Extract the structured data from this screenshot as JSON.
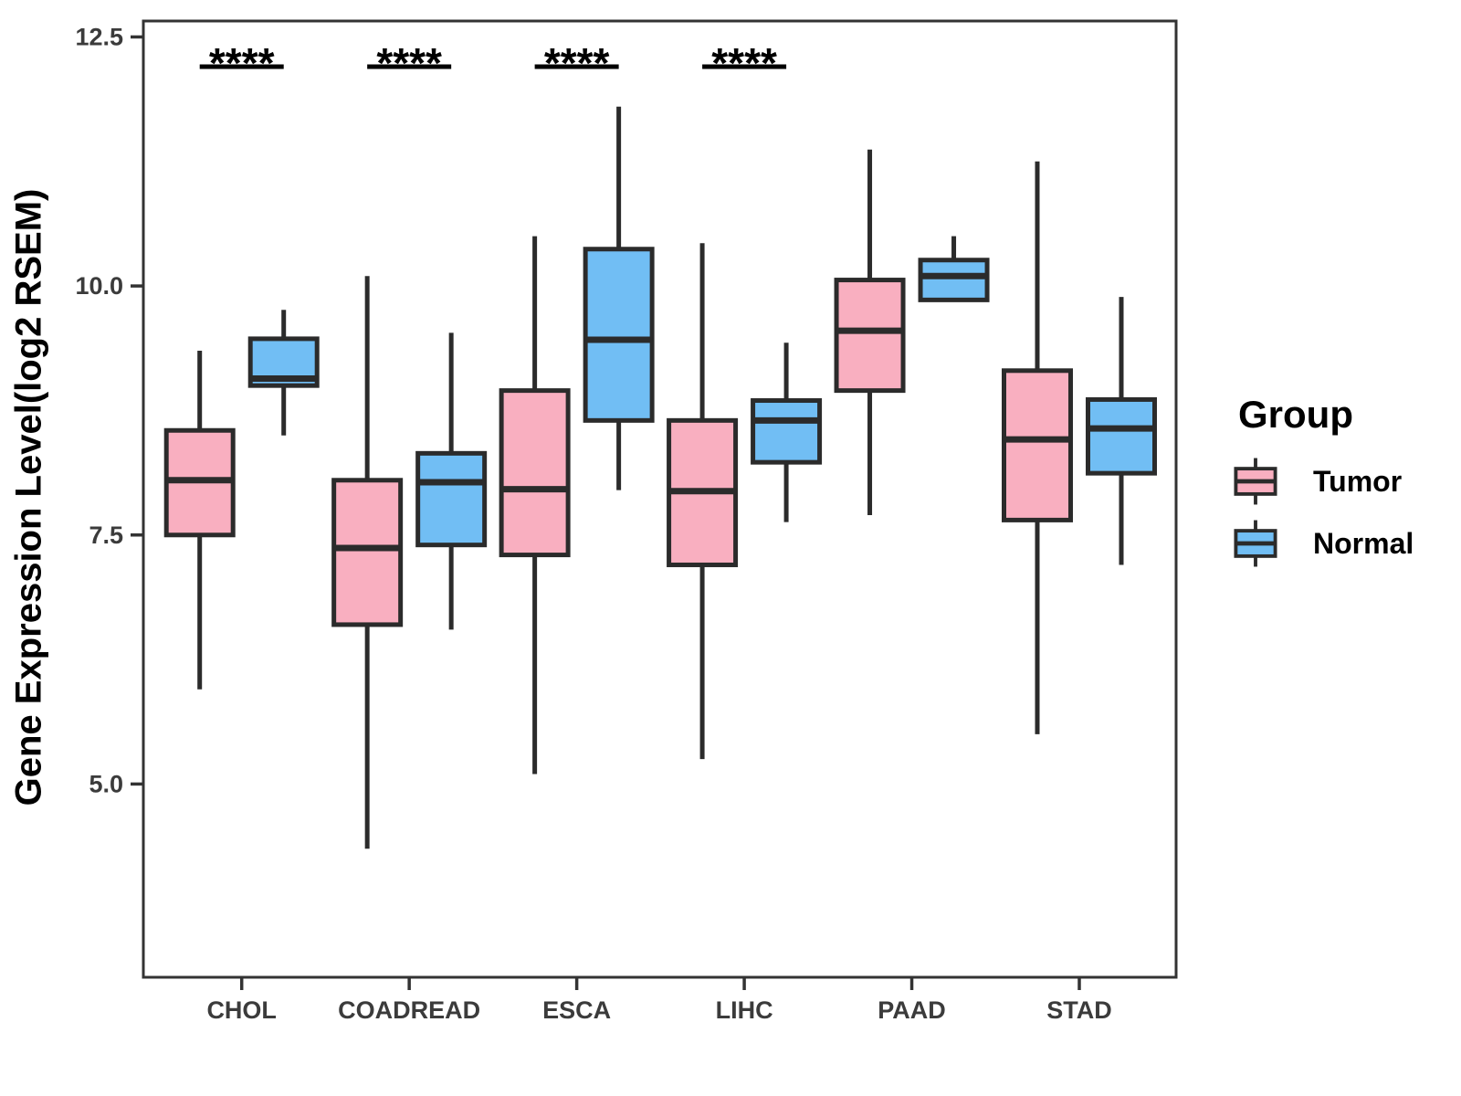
{
  "figure": {
    "y_axis_title": "Gene Expression Level(log2 RSEM)",
    "colors": {
      "tumor_fill": "#F9AFC0",
      "normal_fill": "#71BEF4",
      "box_stroke": "#2B2B2B",
      "axis_text": "#3B3B3B",
      "significance": "#000000"
    },
    "legend": {
      "title": "Group",
      "items": [
        {
          "label": "Tumor",
          "color": "#F9AFC0"
        },
        {
          "label": "Normal",
          "color": "#71BEF4"
        }
      ]
    }
  },
  "chart_data": {
    "type": "grouped_boxplot",
    "title": "",
    "xlabel": "",
    "ylabel": "Gene Expression Level(log2 RSEM)",
    "categories": [
      "CHOL",
      "COADREAD",
      "ESCA",
      "LIHC",
      "PAAD",
      "STAD"
    ],
    "ytick_labels": [
      "12.5",
      "10.0",
      "7.5",
      "5.0"
    ],
    "ytick_values": [
      12.5,
      10.0,
      7.5,
      5.0
    ],
    "ylim": [
      3.06,
      12.66
    ],
    "grid": false,
    "legend_position": "right",
    "series": [
      {
        "name": "Tumor",
        "color": "#F9AFC0",
        "boxes": [
          {
            "category": "CHOL",
            "whisker_low": 5.95,
            "q1": 7.5,
            "median": 8.05,
            "q3": 8.55,
            "whisker_high": 9.35
          },
          {
            "category": "COADREAD",
            "whisker_low": 4.35,
            "q1": 6.6,
            "median": 7.37,
            "q3": 8.05,
            "whisker_high": 10.1
          },
          {
            "category": "ESCA",
            "whisker_low": 5.1,
            "q1": 7.3,
            "median": 7.96,
            "q3": 8.95,
            "whisker_high": 10.5
          },
          {
            "category": "LIHC",
            "whisker_low": 5.25,
            "q1": 7.2,
            "median": 7.94,
            "q3": 8.65,
            "whisker_high": 10.43
          },
          {
            "category": "PAAD",
            "whisker_low": 7.7,
            "q1": 8.95,
            "median": 9.55,
            "q3": 10.06,
            "whisker_high": 11.37
          },
          {
            "category": "STAD",
            "whisker_low": 5.5,
            "q1": 7.65,
            "median": 8.46,
            "q3": 9.15,
            "whisker_high": 11.25
          }
        ]
      },
      {
        "name": "Normal",
        "color": "#71BEF4",
        "boxes": [
          {
            "category": "CHOL",
            "whisker_low": 8.5,
            "q1": 9.0,
            "median": 9.07,
            "q3": 9.47,
            "whisker_high": 9.76
          },
          {
            "category": "COADREAD",
            "whisker_low": 6.55,
            "q1": 7.4,
            "median": 8.03,
            "q3": 8.32,
            "whisker_high": 9.53
          },
          {
            "category": "ESCA",
            "whisker_low": 7.95,
            "q1": 8.65,
            "median": 9.46,
            "q3": 10.37,
            "whisker_high": 11.8
          },
          {
            "category": "LIHC",
            "whisker_low": 7.63,
            "q1": 8.23,
            "median": 8.65,
            "q3": 8.85,
            "whisker_high": 9.43
          },
          {
            "category": "PAAD",
            "whisker_low": 9.86,
            "q1": 9.86,
            "median": 10.1,
            "q3": 10.26,
            "whisker_high": 10.5
          },
          {
            "category": "STAD",
            "whisker_low": 7.2,
            "q1": 8.12,
            "median": 8.57,
            "q3": 8.86,
            "whisker_high": 9.89
          }
        ]
      }
    ],
    "significance": [
      {
        "category": "CHOL",
        "label": "****"
      },
      {
        "category": "COADREAD",
        "label": "****"
      },
      {
        "category": "ESCA",
        "label": "****"
      },
      {
        "category": "LIHC",
        "label": "****"
      }
    ]
  }
}
